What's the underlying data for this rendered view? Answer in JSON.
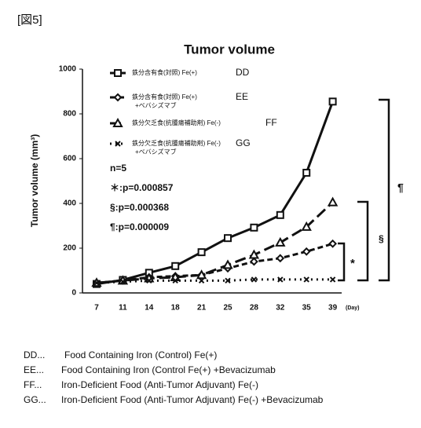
{
  "header": "[図5]",
  "chart_data": {
    "type": "line",
    "title": "Tumor volume",
    "y_label": "Tumor volume (mm³)",
    "x_unit": "(Day)",
    "categories": [
      "7",
      "11",
      "14",
      "18",
      "21",
      "25",
      "28",
      "32",
      "35",
      "39"
    ],
    "ylim": [
      0,
      1000
    ],
    "yticks": [
      0,
      200,
      400,
      600,
      800,
      1000
    ],
    "series": [
      {
        "name": [
          "鉄分含有食(対照) Fe(+)"
        ],
        "code": "DD",
        "color": "#111",
        "style": "solid",
        "marker": "square",
        "values": [
          40,
          58,
          90,
          120,
          182,
          245,
          292,
          348,
          537,
          855
        ]
      },
      {
        "name": [
          "鉄分含有食(対照) Fe(+)",
          "+ベバシズマブ"
        ],
        "code": "EE",
        "color": "#111",
        "style": "dash",
        "marker": "diamond",
        "values": [
          45,
          55,
          70,
          75,
          80,
          110,
          140,
          155,
          185,
          220
        ]
      },
      {
        "name": [
          "鉄分欠乏食(抗腫瘍補助剤) Fe(-)"
        ],
        "code": "FF",
        "color": "#111",
        "style": "longdash",
        "marker": "triangle",
        "values": [
          45,
          55,
          65,
          70,
          80,
          125,
          170,
          225,
          295,
          405
        ]
      },
      {
        "name": [
          "鉄分欠乏食(抗腫瘍補助剤) Fe(-)",
          "+ベバシズマブ"
        ],
        "code": "GG",
        "color": "#111",
        "style": "dot",
        "marker": "x",
        "values": [
          45,
          50,
          55,
          55,
          55,
          55,
          60,
          60,
          60,
          60
        ]
      }
    ],
    "stats": [
      "n=5",
      "＊:p=0.000857",
      "§:p=0.000368",
      "¶:p=0.000009"
    ],
    "brackets": [
      "¶",
      "§",
      "*"
    ]
  },
  "footnotes": [
    {
      "code": "DD...",
      "text": "Food Containing Iron (Control) Fe(+)"
    },
    {
      "code": "EE...",
      "text": "Food Containing Iron (Control Fe(+) +Bevacizumab"
    },
    {
      "code": "FF...",
      "text": "Iron-Deficient Food (Anti-Tumor Adjuvant) Fe(-)"
    },
    {
      "code": "GG...",
      "text": "Iron-Deficient Food (Anti-Tumor Adjuvant) Fe(-) +Bevacizumab"
    }
  ]
}
